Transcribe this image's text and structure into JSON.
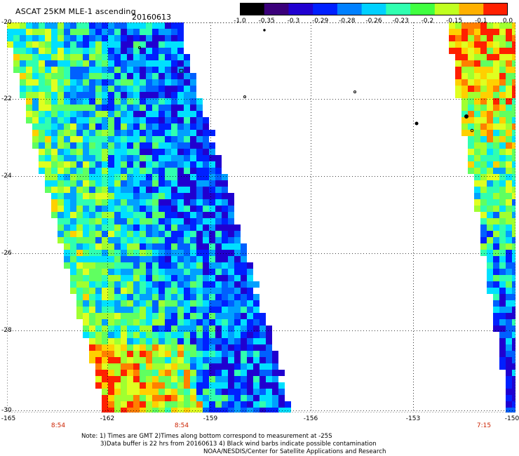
{
  "header": {
    "title": "ASCAT 25KM MLE-1 ascending",
    "date": "20160613"
  },
  "colorbar": {
    "tick_labels": [
      "-1.0",
      "-0.35",
      "-0.3",
      "-0.29",
      "-0.28",
      "-0.26",
      "-0.23",
      "-0.2",
      "-0.15",
      "-0.1",
      "0.0"
    ],
    "colors": [
      "#000000",
      "#3a007a",
      "#2000d0",
      "#0020ff",
      "#0080ff",
      "#00d0ff",
      "#30ffb0",
      "#40ff40",
      "#c0ff20",
      "#ffb000",
      "#ff2000"
    ]
  },
  "axes": {
    "y_labels": [
      "-20",
      "-22",
      "-24",
      "-26",
      "-28",
      "-30"
    ],
    "x_labels": [
      "-165",
      "-162",
      "-159",
      "-156",
      "-153",
      "-150"
    ],
    "time_labels": [
      "8:54",
      "8:54",
      "7:15"
    ],
    "lon_range": [
      -165,
      -150
    ],
    "lat_range": [
      -30,
      -20
    ]
  },
  "notes": {
    "line1": "Note: 1) Times are GMT 2)Times along bottom correspond to measurement at -25S",
    "line2": "3)Data buffer is 22 hrs from 20160613 4) Black wind barbs indicate possible contamination",
    "line3": "NOAA/NESDIS/Center for Satellite Applications and Research"
  }
}
